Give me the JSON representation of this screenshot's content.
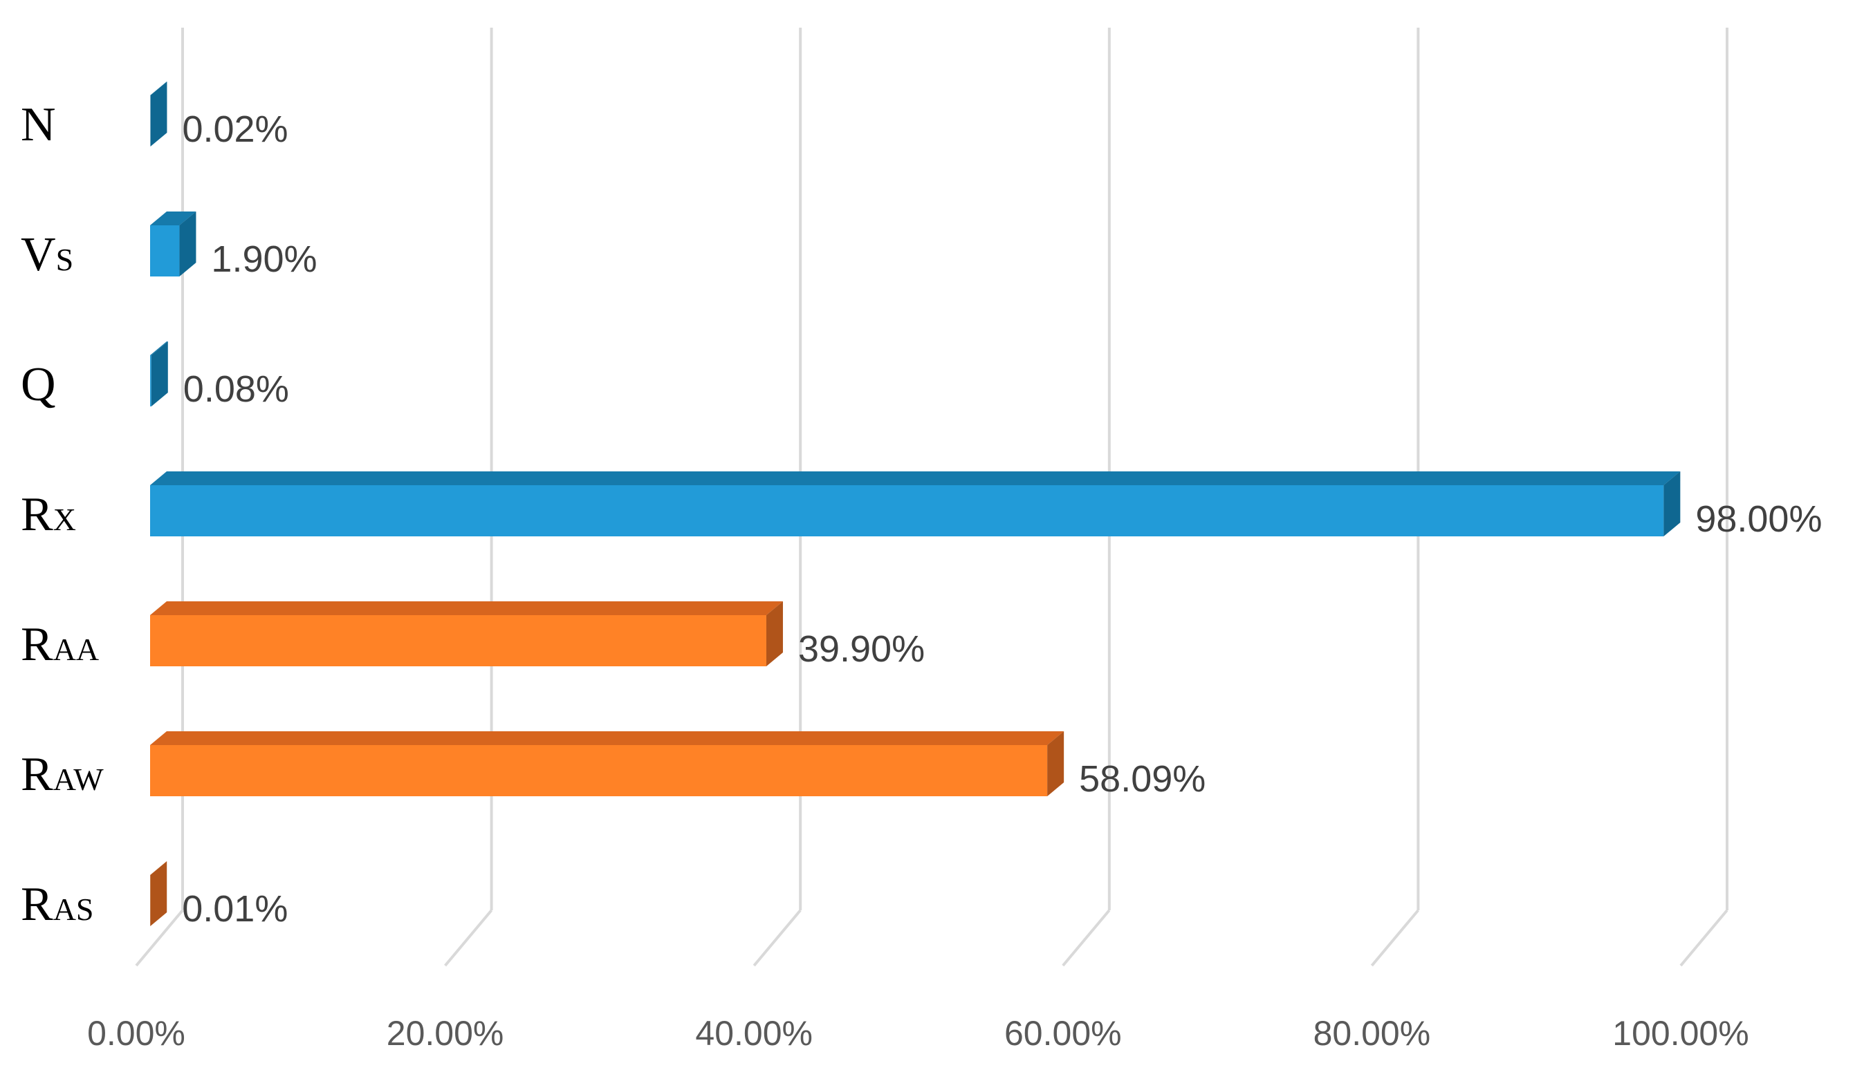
{
  "chart_data": {
    "type": "bar",
    "orientation": "horizontal",
    "style": "3d",
    "categories": [
      {
        "main": "N",
        "sub": ""
      },
      {
        "main": "V",
        "sub": "S"
      },
      {
        "main": "Q",
        "sub": ""
      },
      {
        "main": "R",
        "sub": "X"
      },
      {
        "main": "R",
        "sub": "AA"
      },
      {
        "main": "R",
        "sub": "AW"
      },
      {
        "main": "R",
        "sub": "AS"
      }
    ],
    "values": [
      0.02,
      1.9,
      0.08,
      98.0,
      39.9,
      58.09,
      0.01
    ],
    "data_labels": [
      "0.02%",
      "1.90%",
      "0.08%",
      "98.00%",
      "39.90%",
      "58.09%",
      "0.01%"
    ],
    "bar_groups": [
      "blue",
      "blue",
      "blue",
      "blue",
      "orange",
      "orange",
      "orange"
    ],
    "colors": {
      "blue": {
        "front": "#229BD8",
        "top": "#167AAB",
        "side": "#0F6791"
      },
      "orange": {
        "front": "#FF8226",
        "top": "#D7651E",
        "side": "#B0541A"
      },
      "grid": "#D9D9D9"
    },
    "xlim": [
      0,
      100
    ],
    "x_ticks": [
      "0.00%",
      "20.00%",
      "40.00%",
      "60.00%",
      "80.00%",
      "100.00%"
    ],
    "x_tick_values": [
      0,
      20,
      40,
      60,
      80,
      100
    ],
    "grid": true,
    "legend": "none",
    "title": "",
    "xlabel": "",
    "ylabel": ""
  }
}
